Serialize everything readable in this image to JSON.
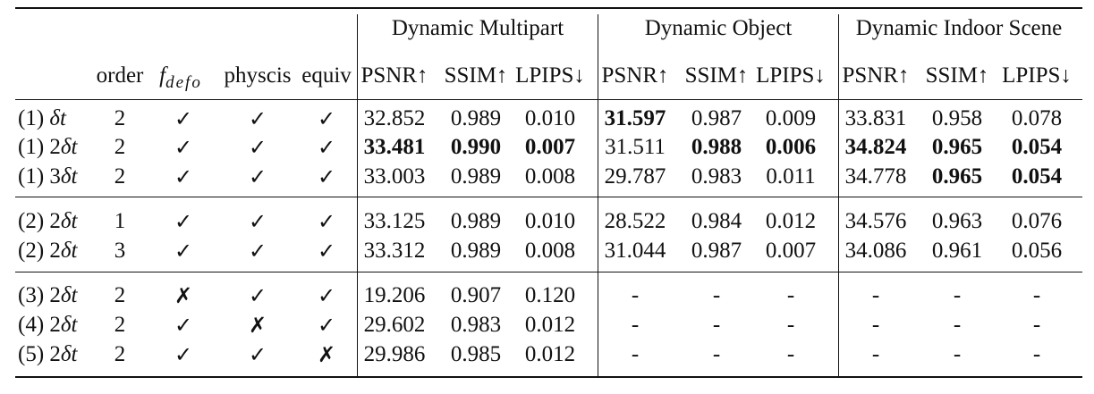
{
  "groups": [
    "Dynamic Multipart",
    "Dynamic Object",
    "Dynamic Indoor Scene"
  ],
  "columns": {
    "order": "order",
    "fdefo_main": "f",
    "fdefo_sub": "defo",
    "physcis": "physcis",
    "equiv": "equiv",
    "metrics": [
      "PSNR↑",
      "SSIM↑",
      "LPIPS↓"
    ]
  },
  "symbols": {
    "check": "✓",
    "cross": "✗"
  },
  "rows": [
    {
      "exp": "(1) ",
      "dt": "δt",
      "order": "2",
      "fdefo": "✓",
      "phys": "✓",
      "equiv": "✓",
      "vals": [
        "32.852",
        "0.989",
        "0.010",
        "31.597",
        "0.987",
        "0.009",
        "33.831",
        "0.958",
        "0.078"
      ],
      "bold": [
        false,
        false,
        false,
        true,
        false,
        false,
        false,
        false,
        false
      ]
    },
    {
      "exp": "(1) 2",
      "dt": "δt",
      "order": "2",
      "fdefo": "✓",
      "phys": "✓",
      "equiv": "✓",
      "vals": [
        "33.481",
        "0.990",
        "0.007",
        "31.511",
        "0.988",
        "0.006",
        "34.824",
        "0.965",
        "0.054"
      ],
      "bold": [
        true,
        true,
        true,
        false,
        true,
        true,
        true,
        true,
        true
      ]
    },
    {
      "exp": "(1) 3",
      "dt": "δt",
      "order": "2",
      "fdefo": "✓",
      "phys": "✓",
      "equiv": "✓",
      "vals": [
        "33.003",
        "0.989",
        "0.008",
        "29.787",
        "0.983",
        "0.011",
        "34.778",
        "0.965",
        "0.054"
      ],
      "bold": [
        false,
        false,
        false,
        false,
        false,
        false,
        false,
        true,
        true
      ]
    },
    {
      "exp": "(2) 2",
      "dt": "δt",
      "order": "1",
      "fdefo": "✓",
      "phys": "✓",
      "equiv": "✓",
      "vals": [
        "33.125",
        "0.989",
        "0.010",
        "28.522",
        "0.984",
        "0.012",
        "34.576",
        "0.963",
        "0.076"
      ],
      "bold": [
        false,
        false,
        false,
        false,
        false,
        false,
        false,
        false,
        false
      ]
    },
    {
      "exp": "(2) 2",
      "dt": "δt",
      "order": "3",
      "fdefo": "✓",
      "phys": "✓",
      "equiv": "✓",
      "vals": [
        "33.312",
        "0.989",
        "0.008",
        "31.044",
        "0.987",
        "0.007",
        "34.086",
        "0.961",
        "0.056"
      ],
      "bold": [
        false,
        false,
        false,
        false,
        false,
        false,
        false,
        false,
        false
      ]
    },
    {
      "exp": "(3) 2",
      "dt": "δt",
      "order": "2",
      "fdefo": "✗",
      "phys": "✓",
      "equiv": "✓",
      "vals": [
        "19.206",
        "0.907",
        "0.120",
        "-",
        "-",
        "-",
        "-",
        "-",
        "-"
      ],
      "bold": [
        false,
        false,
        false,
        false,
        false,
        false,
        false,
        false,
        false
      ]
    },
    {
      "exp": "(4) 2",
      "dt": "δt",
      "order": "2",
      "fdefo": "✓",
      "phys": "✗",
      "equiv": "✓",
      "vals": [
        "29.602",
        "0.983",
        "0.012",
        "-",
        "-",
        "-",
        "-",
        "-",
        "-"
      ],
      "bold": [
        false,
        false,
        false,
        false,
        false,
        false,
        false,
        false,
        false
      ]
    },
    {
      "exp": "(5) 2",
      "dt": "δt",
      "order": "2",
      "fdefo": "✓",
      "phys": "✓",
      "equiv": "✗",
      "vals": [
        "29.986",
        "0.985",
        "0.012",
        "-",
        "-",
        "-",
        "-",
        "-",
        "-"
      ],
      "bold": [
        false,
        false,
        false,
        false,
        false,
        false,
        false,
        false,
        false
      ]
    }
  ]
}
